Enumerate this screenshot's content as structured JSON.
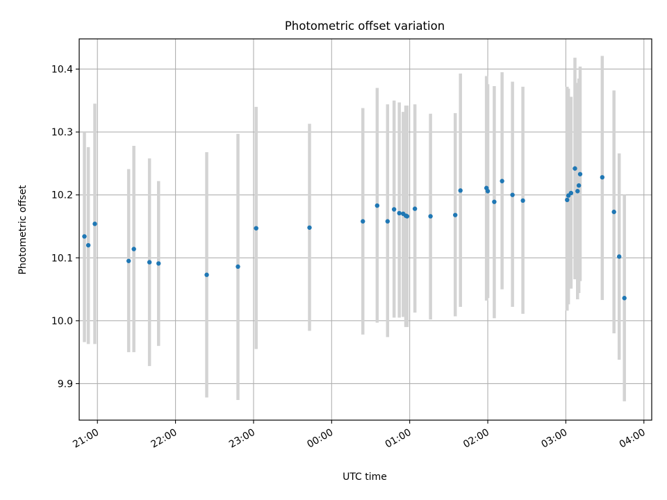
{
  "chart_data": {
    "type": "scatter",
    "title": "Photometric offset variation",
    "xlabel": "UTC time",
    "ylabel": "Photometric offset",
    "x_axis_type": "time",
    "xlim": [
      "20:46",
      "04:06"
    ],
    "ylim": [
      9.842,
      10.448
    ],
    "grid": true,
    "x_ticks": [
      "21:00",
      "22:00",
      "23:00",
      "00:00",
      "01:00",
      "02:00",
      "03:00",
      "04:00"
    ],
    "y_ticks": [
      9.9,
      10.0,
      10.1,
      10.2,
      10.3,
      10.4
    ],
    "y_tick_labels": [
      "9.9",
      "10.0",
      "10.1",
      "10.2",
      "10.3",
      "10.4"
    ],
    "marker_color": "#1f77b4",
    "errorbar_color": "#d3d3d3",
    "points": [
      {
        "x": "20:50",
        "y": 10.134,
        "ylow": 9.966,
        "yhigh": 10.3
      },
      {
        "x": "20:53",
        "y": 10.12,
        "ylow": 9.963,
        "yhigh": 10.276
      },
      {
        "x": "20:58",
        "y": 10.154,
        "ylow": 9.963,
        "yhigh": 10.345
      },
      {
        "x": "21:24",
        "y": 10.095,
        "ylow": 9.95,
        "yhigh": 10.241
      },
      {
        "x": "21:28",
        "y": 10.114,
        "ylow": 9.95,
        "yhigh": 10.278
      },
      {
        "x": "21:40",
        "y": 10.093,
        "ylow": 9.928,
        "yhigh": 10.258
      },
      {
        "x": "21:47",
        "y": 10.091,
        "ylow": 9.96,
        "yhigh": 10.222
      },
      {
        "x": "22:24",
        "y": 10.073,
        "ylow": 9.878,
        "yhigh": 10.268
      },
      {
        "x": "22:48",
        "y": 10.086,
        "ylow": 9.874,
        "yhigh": 10.297
      },
      {
        "x": "23:02",
        "y": 10.147,
        "ylow": 9.955,
        "yhigh": 10.34
      },
      {
        "x": "23:43",
        "y": 10.148,
        "ylow": 9.984,
        "yhigh": 10.313
      },
      {
        "x": "00:24",
        "y": 10.158,
        "ylow": 9.978,
        "yhigh": 10.338
      },
      {
        "x": "00:35",
        "y": 10.183,
        "ylow": 9.997,
        "yhigh": 10.37
      },
      {
        "x": "00:43",
        "y": 10.158,
        "ylow": 9.974,
        "yhigh": 10.344
      },
      {
        "x": "00:48",
        "y": 10.177,
        "ylow": 10.005,
        "yhigh": 10.35
      },
      {
        "x": "00:52",
        "y": 10.171,
        "ylow": 10.005,
        "yhigh": 10.347
      },
      {
        "x": "00:55",
        "y": 10.17,
        "ylow": 10.006,
        "yhigh": 10.332
      },
      {
        "x": "00:57",
        "y": 10.167,
        "ylow": 9.99,
        "yhigh": 10.342
      },
      {
        "x": "00:58",
        "y": 10.166,
        "ylow": 9.99,
        "yhigh": 10.342
      },
      {
        "x": "01:04",
        "y": 10.178,
        "ylow": 10.013,
        "yhigh": 10.344
      },
      {
        "x": "01:16",
        "y": 10.166,
        "ylow": 10.002,
        "yhigh": 10.329
      },
      {
        "x": "01:35",
        "y": 10.168,
        "ylow": 10.007,
        "yhigh": 10.33
      },
      {
        "x": "01:39",
        "y": 10.207,
        "ylow": 10.022,
        "yhigh": 10.393
      },
      {
        "x": "01:59",
        "y": 10.211,
        "ylow": 10.032,
        "yhigh": 10.389
      },
      {
        "x": "02:00",
        "y": 10.206,
        "ylow": 10.036,
        "yhigh": 10.376
      },
      {
        "x": "02:05",
        "y": 10.189,
        "ylow": 10.004,
        "yhigh": 10.373
      },
      {
        "x": "02:11",
        "y": 10.222,
        "ylow": 10.05,
        "yhigh": 10.395
      },
      {
        "x": "02:19",
        "y": 10.2,
        "ylow": 10.022,
        "yhigh": 10.38
      },
      {
        "x": "02:27",
        "y": 10.191,
        "ylow": 10.011,
        "yhigh": 10.372
      },
      {
        "x": "03:01",
        "y": 10.192,
        "ylow": 10.016,
        "yhigh": 10.372
      },
      {
        "x": "03:02",
        "y": 10.199,
        "ylow": 10.026,
        "yhigh": 10.369
      },
      {
        "x": "03:04",
        "y": 10.203,
        "ylow": 10.051,
        "yhigh": 10.356
      },
      {
        "x": "03:07",
        "y": 10.242,
        "ylow": 10.066,
        "yhigh": 10.418
      },
      {
        "x": "03:09",
        "y": 10.206,
        "ylow": 10.034,
        "yhigh": 10.378
      },
      {
        "x": "03:10",
        "y": 10.215,
        "ylow": 10.044,
        "yhigh": 10.385
      },
      {
        "x": "03:11",
        "y": 10.233,
        "ylow": 10.063,
        "yhigh": 10.404
      },
      {
        "x": "03:28",
        "y": 10.228,
        "ylow": 10.033,
        "yhigh": 10.421
      },
      {
        "x": "03:37",
        "y": 10.173,
        "ylow": 9.98,
        "yhigh": 10.366
      },
      {
        "x": "03:41",
        "y": 10.102,
        "ylow": 9.938,
        "yhigh": 10.266
      },
      {
        "x": "03:45",
        "y": 10.036,
        "ylow": 9.872,
        "yhigh": 10.2
      }
    ]
  }
}
